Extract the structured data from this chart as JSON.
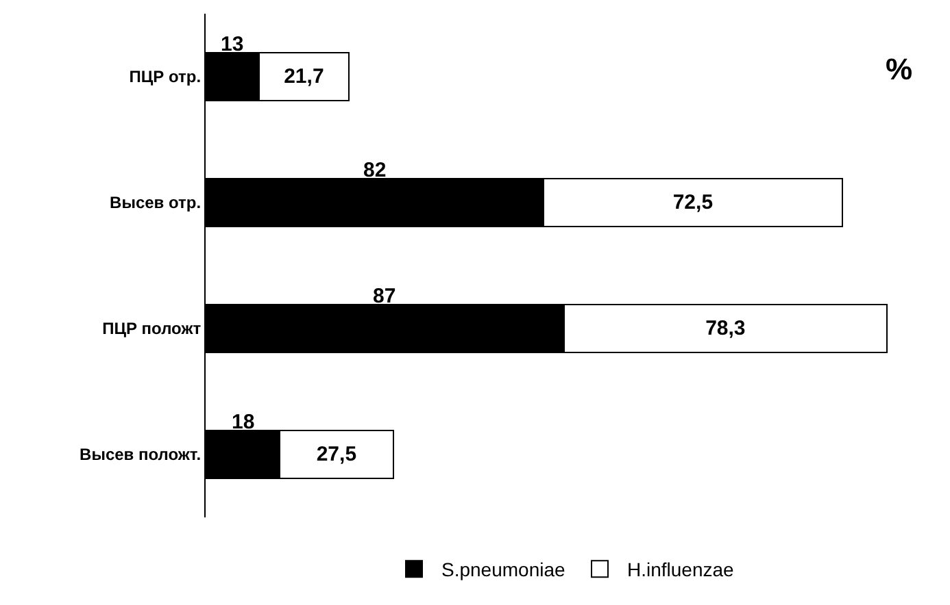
{
  "chart_data": {
    "type": "bar",
    "orientation": "horizontal",
    "stacked": true,
    "categories": [
      "ПЦР отр.",
      "Высев отр.",
      "ПЦР положт",
      "Высев положт."
    ],
    "series": [
      {
        "name": "S.pneumoniae",
        "color": "#000000",
        "values": [
          13,
          82,
          87,
          18
        ],
        "value_labels": [
          "13",
          "82",
          "87",
          "18"
        ]
      },
      {
        "name": "H.influenzae",
        "color": "#ffffff",
        "values": [
          21.7,
          72.5,
          78.3,
          27.5
        ],
        "value_labels": [
          "21,7",
          "72,5",
          "78,3",
          "27,5"
        ]
      }
    ],
    "annotations": [
      "%"
    ],
    "legend": "bottom"
  }
}
